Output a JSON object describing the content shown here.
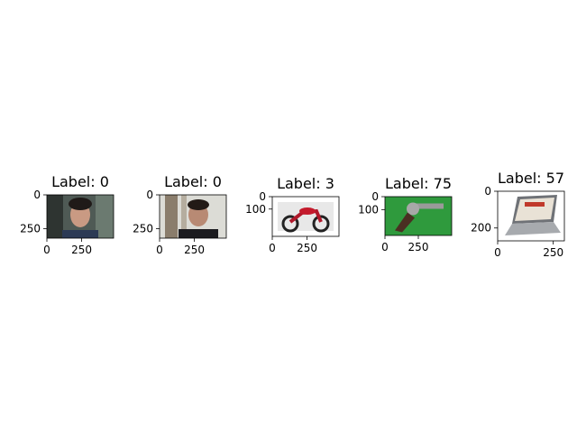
{
  "chart_data": [
    {
      "type": "image",
      "title": "Label: 0",
      "image_width": 480,
      "image_height": 320,
      "xticks": [
        0,
        250
      ],
      "yticks": [
        0,
        250
      ],
      "content": "man-face-portrait"
    },
    {
      "type": "image",
      "title": "Label: 0",
      "image_width": 480,
      "image_height": 320,
      "xticks": [
        0,
        250
      ],
      "yticks": [
        0,
        250
      ],
      "content": "man-face-portrait-2"
    },
    {
      "type": "image",
      "title": "Label: 3",
      "image_width": 480,
      "image_height": 320,
      "xticks": [
        0,
        250
      ],
      "yticks": [
        0,
        100
      ],
      "content": "motorcycle-photo"
    },
    {
      "type": "image",
      "title": "Label: 75",
      "image_width": 500,
      "image_height": 300,
      "xticks": [
        0,
        250
      ],
      "yticks": [
        0,
        100
      ],
      "content": "revolver-photo"
    },
    {
      "type": "image",
      "title": "Label: 57",
      "image_width": 300,
      "image_height": 270,
      "xticks": [
        0,
        250
      ],
      "yticks": [
        0,
        200
      ],
      "content": "laptop-photo"
    }
  ]
}
